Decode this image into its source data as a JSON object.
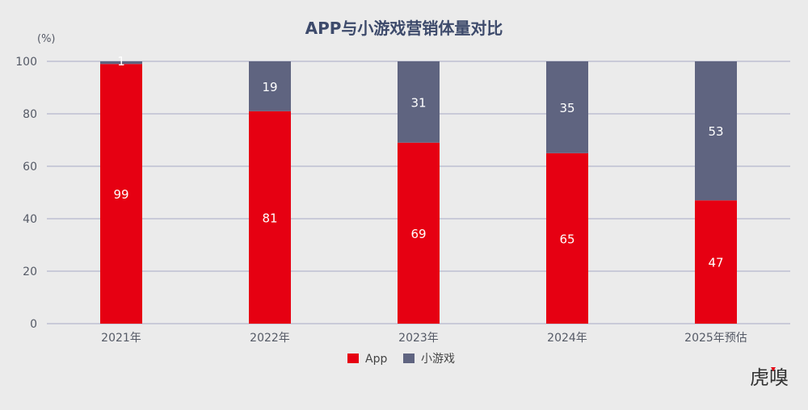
{
  "chart_data": {
    "type": "bar",
    "stacked": true,
    "title": "APP与小游戏营销体量对比",
    "unit_label": "(%)",
    "categories": [
      "2021年",
      "2022年",
      "2023年",
      "2024年",
      "2025年预估"
    ],
    "series": [
      {
        "name": "App",
        "values": [
          99,
          81,
          69,
          65,
          47
        ],
        "color": "#e60012"
      },
      {
        "name": "小游戏",
        "values": [
          1,
          19,
          31,
          35,
          53
        ],
        "color": "#5f6480"
      }
    ],
    "ylim": [
      0,
      100
    ],
    "yticks": [
      0,
      20,
      40,
      60,
      80,
      100
    ],
    "grid": true,
    "legend": "bottom-center"
  },
  "watermark": {
    "text": "虎嗅"
  },
  "colors": {
    "background": "#ebebeb",
    "grid": "#a7a9c4",
    "title": "#3d4a6b",
    "axis_text": "#555a66"
  }
}
